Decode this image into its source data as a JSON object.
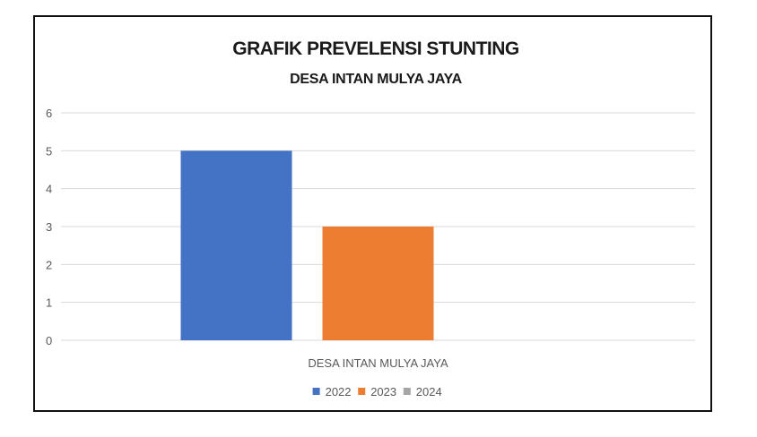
{
  "chart_data": {
    "type": "bar",
    "title": "GRAFIK PREVELENSI STUNTING",
    "subtitle": "DESA INTAN MULYA JAYA",
    "categories": [
      "DESA INTAN MULYA JAYA"
    ],
    "series": [
      {
        "name": "2022",
        "values": [
          5
        ],
        "color": "#4472C4"
      },
      {
        "name": "2023",
        "values": [
          3
        ],
        "color": "#ED7D31"
      },
      {
        "name": "2024",
        "values": [
          0
        ],
        "color": "#A5A5A5"
      }
    ],
    "ylim": [
      0,
      6
    ],
    "yticks": [
      "0",
      "1",
      "2",
      "3",
      "4",
      "5",
      "6"
    ],
    "grid": true,
    "legend": "bottom"
  }
}
